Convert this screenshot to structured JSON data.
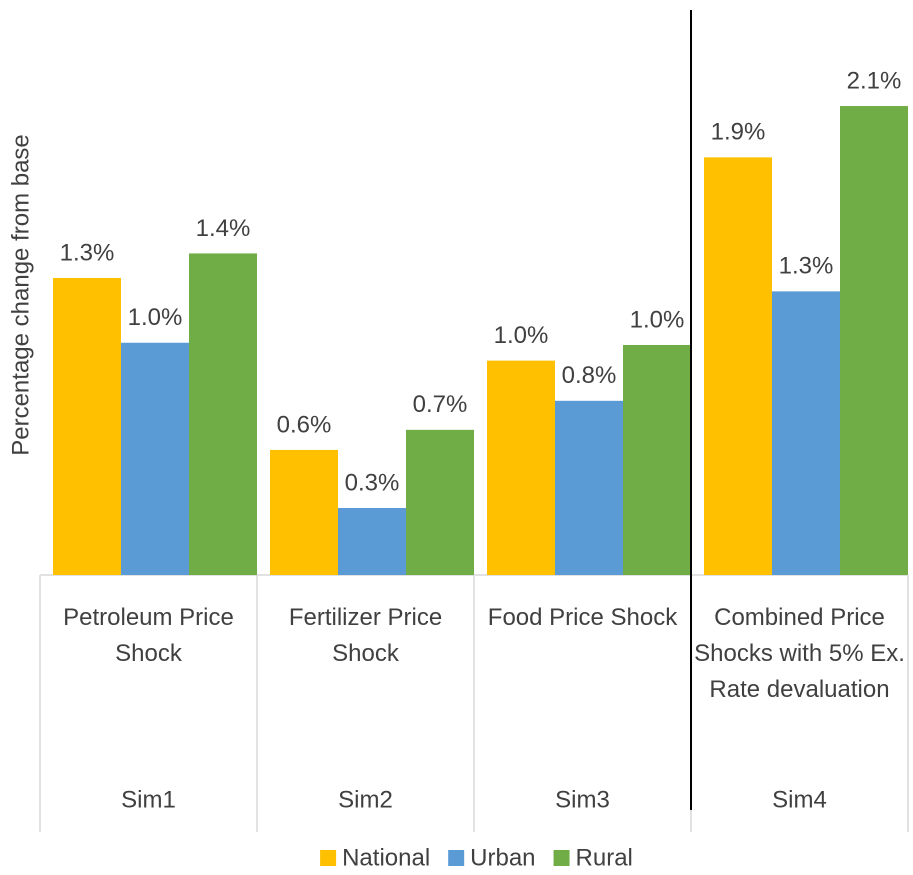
{
  "chart_data": {
    "type": "bar",
    "y_label": "Percentage change from base",
    "categories": [
      "Sim1",
      "Sim2",
      "Sim3",
      "Sim4"
    ],
    "group_labels": [
      "Petroleum Price Shock",
      "Fertilizer Price Shock",
      "Food Price Shock",
      "Combined Price Shocks with 5% Ex. Rate devaluation"
    ],
    "series": [
      {
        "name": "National",
        "color": "#FFC000",
        "values": [
          1.33,
          0.56,
          0.96,
          1.87
        ],
        "value_labels": [
          "1.3%",
          "0.6%",
          "1.0%",
          "1.9%"
        ]
      },
      {
        "name": "Urban",
        "color": "#5B9BD5",
        "values": [
          1.04,
          0.3,
          0.78,
          1.27
        ],
        "value_labels": [
          "1.0%",
          "0.3%",
          "0.8%",
          "1.3%"
        ]
      },
      {
        "name": "Rural",
        "color": "#70AD47",
        "values": [
          1.44,
          0.65,
          1.03,
          2.1
        ],
        "value_labels": [
          "1.4%",
          "0.7%",
          "1.0%",
          "2.1%"
        ]
      }
    ],
    "ylim": [
      0,
      2.53
    ],
    "legend": "bottom"
  }
}
